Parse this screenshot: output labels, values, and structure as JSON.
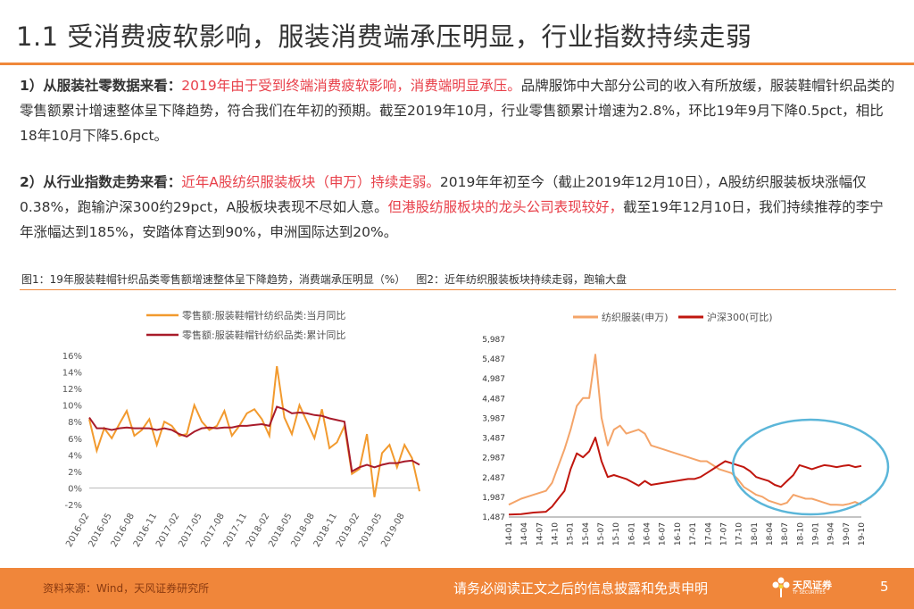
{
  "title": "1.1 受消费疲软影响，服装消费端承压明显，行业指数持续走弱",
  "para1": {
    "lead": "1）从服装社零数据来看：",
    "highlight": "2019年由于受到终端消费疲软影响，消费端明显承压。",
    "rest": "品牌服饰中大部分公司的收入有所放缓，服装鞋帽针织品类的零售额累计增速整体呈下降趋势，符合我们在年初的预期。截至2019年10月，行业零售额累计增速为2.8%，环比19年9月下降0.5pct，相比18年10月下降5.6pct。"
  },
  "para2": {
    "lead": "2）从行业指数走势来看：",
    "highlight1": "近年A股纺织服装板块（申万）持续走弱。",
    "mid": "2019年年初至今（截止2019年12月10日），A股纺织服装板块涨幅仅0.38%，跑输沪深300约29pct，A股板块表现不尽如人意。",
    "highlight2": "但港股纺服板块的龙头公司表现较好，",
    "rest": "截至19年12月10日，我们持续推荐的李宁年涨幅达到185%，安踏体育达到90%，申洲国际达到20%。"
  },
  "captions": {
    "fig1": "图1：19年服装鞋帽针织品类零售额增速整体呈下降趋势，消费端承压明显（%）",
    "fig2": "图2：近年纺织服装板块持续走弱，跑输大盘"
  },
  "chart_data": [
    {
      "type": "line",
      "x": [
        "2016-02",
        "2016-03",
        "2016-04",
        "2016-05",
        "2016-06",
        "2016-07",
        "2016-08",
        "2016-09",
        "2016-10",
        "2016-11",
        "2016-12",
        "2017-01",
        "2017-02",
        "2017-03",
        "2017-04",
        "2017-05",
        "2017-06",
        "2017-07",
        "2017-08",
        "2017-09",
        "2017-10",
        "2017-11",
        "2017-12",
        "2018-01",
        "2018-02",
        "2018-03",
        "2018-04",
        "2018-05",
        "2018-06",
        "2018-07",
        "2018-08",
        "2018-09",
        "2018-10",
        "2018-11",
        "2018-12",
        "2019-01",
        "2019-02",
        "2019-03",
        "2019-04",
        "2019-05",
        "2019-06",
        "2019-07",
        "2019-08",
        "2019-09",
        "2019-10"
      ],
      "x_tick_labels": [
        "2016-02",
        "2016-05",
        "2016-08",
        "2016-11",
        "2017-02",
        "2017-05",
        "2017-08",
        "2017-11",
        "2018-02",
        "2018-05",
        "2018-08",
        "2018-11",
        "2019-02",
        "2019-05",
        "2019-08"
      ],
      "series": [
        {
          "name": "零售额:服装鞋帽针纺织品类:当月同比",
          "color": "#f29a2e",
          "values": [
            8.3,
            4.5,
            7.2,
            6.0,
            7.7,
            9.3,
            6.3,
            7.0,
            8.3,
            5.2,
            8.0,
            7.5,
            6.3,
            6.5,
            10.0,
            8.0,
            7.0,
            7.5,
            9.3,
            6.3,
            7.5,
            9.0,
            9.5,
            8.3,
            6.3,
            14.7,
            8.5,
            6.5,
            10.0,
            8.0,
            6.0,
            9.5,
            4.8,
            5.5,
            7.5,
            1.7,
            2.3,
            6.5,
            -1.1,
            4.2,
            5.2,
            2.5,
            5.2,
            3.6,
            -0.4
          ]
        },
        {
          "name": "零售额:服装鞋帽针纺织品类:累计同比",
          "color": "#a81b2a",
          "values": [
            8.5,
            7.2,
            7.2,
            7.0,
            7.2,
            7.3,
            7.2,
            7.2,
            7.2,
            7.0,
            7.2,
            7.0,
            6.5,
            6.2,
            6.8,
            7.2,
            7.3,
            7.2,
            7.3,
            7.3,
            7.5,
            7.5,
            7.6,
            7.7,
            7.5,
            9.8,
            9.5,
            9.0,
            9.1,
            9.0,
            8.8,
            8.7,
            8.4,
            8.2,
            8.0,
            2.0,
            2.5,
            2.8,
            2.5,
            2.8,
            3.0,
            3.0,
            3.2,
            3.3,
            2.8
          ]
        }
      ],
      "y_ticks": [
        "16%",
        "14%",
        "12%",
        "10%",
        "8%",
        "6%",
        "4%",
        "2%",
        "0%",
        "-2%"
      ],
      "ylim": [
        -2,
        16
      ]
    },
    {
      "type": "line",
      "x_tick_labels": [
        "14-01",
        "14-04",
        "14-07",
        "14-10",
        "15-01",
        "15-04",
        "15-07",
        "15-10",
        "16-01",
        "16-04",
        "16-07",
        "16-10",
        "17-01",
        "17-04",
        "17-07",
        "17-10",
        "18-01",
        "18-04",
        "18-07",
        "18-10",
        "19-01",
        "19-04",
        "19-07",
        "19-10"
      ],
      "series": [
        {
          "name": "纺织服装(申万)",
          "color": "#f4a469",
          "points": [
            [
              0,
              1800
            ],
            [
              2,
              1950
            ],
            [
              4,
              2050
            ],
            [
              6,
              2150
            ],
            [
              7,
              2350
            ],
            [
              9,
              3200
            ],
            [
              10,
              3700
            ],
            [
              11,
              4300
            ],
            [
              12,
              4500
            ],
            [
              13,
              4500
            ],
            [
              14,
              5600
            ],
            [
              15,
              4000
            ],
            [
              16,
              3300
            ],
            [
              17,
              3700
            ],
            [
              18,
              3800
            ],
            [
              19,
              3600
            ],
            [
              21,
              3700
            ],
            [
              22,
              3600
            ],
            [
              23,
              3300
            ],
            [
              25,
              3200
            ],
            [
              27,
              3100
            ],
            [
              29,
              3000
            ],
            [
              30,
              2950
            ],
            [
              31,
              2900
            ],
            [
              32,
              2900
            ],
            [
              33,
              2800
            ],
            [
              34,
              2700
            ],
            [
              35,
              2650
            ],
            [
              36,
              2600
            ],
            [
              37,
              2450
            ],
            [
              38,
              2250
            ],
            [
              39,
              2150
            ],
            [
              40,
              2050
            ],
            [
              41,
              2000
            ],
            [
              42,
              1900
            ],
            [
              43,
              1850
            ],
            [
              44,
              1800
            ],
            [
              45,
              1850
            ],
            [
              46,
              2050
            ],
            [
              47,
              2000
            ],
            [
              48,
              1950
            ],
            [
              49,
              1950
            ],
            [
              50,
              1900
            ],
            [
              51,
              1850
            ],
            [
              52,
              1800
            ],
            [
              53,
              1800
            ],
            [
              54,
              1790
            ],
            [
              55,
              1820
            ],
            [
              56,
              1870
            ],
            [
              57,
              1800
            ]
          ]
        },
        {
          "name": "沪深300(可比)",
          "color": "#c0160e",
          "points": [
            [
              0,
              1550
            ],
            [
              2,
              1560
            ],
            [
              4,
              1600
            ],
            [
              6,
              1620
            ],
            [
              7,
              1750
            ],
            [
              8,
              1950
            ],
            [
              9,
              2150
            ],
            [
              10,
              2700
            ],
            [
              11,
              3100
            ],
            [
              12,
              3000
            ],
            [
              13,
              3150
            ],
            [
              14,
              3500
            ],
            [
              15,
              2900
            ],
            [
              16,
              2500
            ],
            [
              17,
              2550
            ],
            [
              18,
              2500
            ],
            [
              19,
              2450
            ],
            [
              21,
              2280
            ],
            [
              22,
              2400
            ],
            [
              23,
              2300
            ],
            [
              25,
              2350
            ],
            [
              27,
              2400
            ],
            [
              29,
              2450
            ],
            [
              30,
              2450
            ],
            [
              31,
              2500
            ],
            [
              32,
              2600
            ],
            [
              33,
              2700
            ],
            [
              34,
              2800
            ],
            [
              35,
              2900
            ],
            [
              36,
              2850
            ],
            [
              37,
              2800
            ],
            [
              38,
              2750
            ],
            [
              39,
              2650
            ],
            [
              40,
              2500
            ],
            [
              41,
              2450
            ],
            [
              42,
              2400
            ],
            [
              43,
              2300
            ],
            [
              44,
              2250
            ],
            [
              45,
              2400
            ],
            [
              46,
              2550
            ],
            [
              47,
              2800
            ],
            [
              48,
              2750
            ],
            [
              49,
              2700
            ],
            [
              50,
              2750
            ],
            [
              51,
              2800
            ],
            [
              52,
              2780
            ],
            [
              53,
              2750
            ],
            [
              54,
              2780
            ],
            [
              55,
              2800
            ],
            [
              56,
              2750
            ],
            [
              57,
              2780
            ]
          ]
        }
      ],
      "y_ticks": [
        "5,987",
        "5,487",
        "4,987",
        "4,487",
        "3,987",
        "3,487",
        "2,987",
        "2,487",
        "1,987",
        "1,487"
      ],
      "ylim": [
        1487,
        5987
      ]
    }
  ],
  "footer": {
    "source": "资料来源：Wind，天风证券研究所",
    "disclaimer": "请务必阅读正文之后的信息披露和免责申明",
    "logo_text": "天风证券",
    "logo_sub": "TF SECURITIES",
    "page": "5"
  }
}
